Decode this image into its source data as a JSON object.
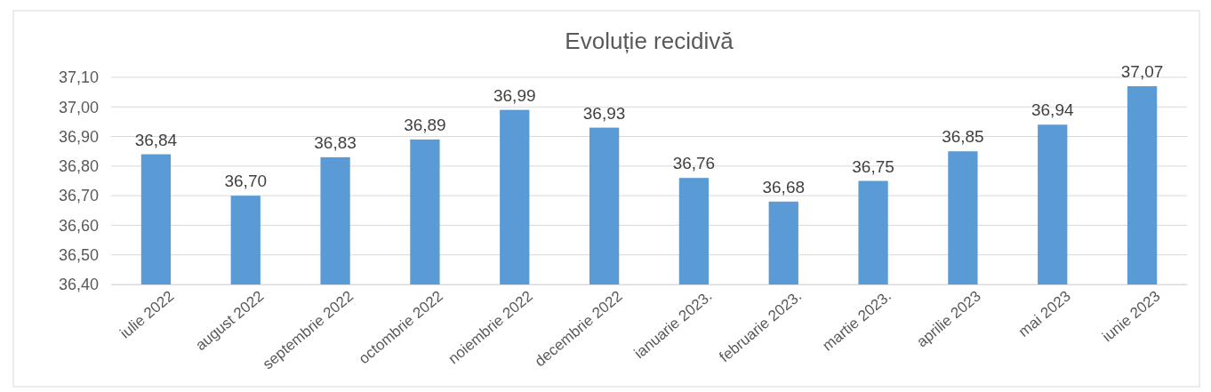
{
  "chart_data": {
    "type": "bar",
    "title": "Evoluție recidivă",
    "categories": [
      "iulie 2022",
      "august 2022",
      "septembrie 2022",
      "octombrie 2022",
      "noiembrie 2022",
      "decembrie 2022",
      "ianuarie 2023.",
      "februarie 2023.",
      "martie 2023.",
      "aprilie 2023",
      "mai 2023",
      "iunie 2023"
    ],
    "values": [
      36.84,
      36.7,
      36.83,
      36.89,
      36.99,
      36.93,
      36.76,
      36.68,
      36.75,
      36.85,
      36.94,
      37.07
    ],
    "value_labels": [
      "36,84",
      "36,70",
      "36,83",
      "36,89",
      "36,99",
      "36,93",
      "36,76",
      "36,68",
      "36,75",
      "36,85",
      "36,94",
      "37,07"
    ],
    "color": "#5b9bd5",
    "ylim": [
      36.4,
      37.1
    ],
    "yticks": [
      {
        "value": 36.4,
        "label": "36,40"
      },
      {
        "value": 36.5,
        "label": "36,50"
      },
      {
        "value": 36.6,
        "label": "36,60"
      },
      {
        "value": 36.7,
        "label": "36,70"
      },
      {
        "value": 36.8,
        "label": "36,80"
      },
      {
        "value": 36.9,
        "label": "36,90"
      },
      {
        "value": 37.0,
        "label": "37,00"
      },
      {
        "value": 37.1,
        "label": "37,10"
      }
    ],
    "grid": "y"
  }
}
